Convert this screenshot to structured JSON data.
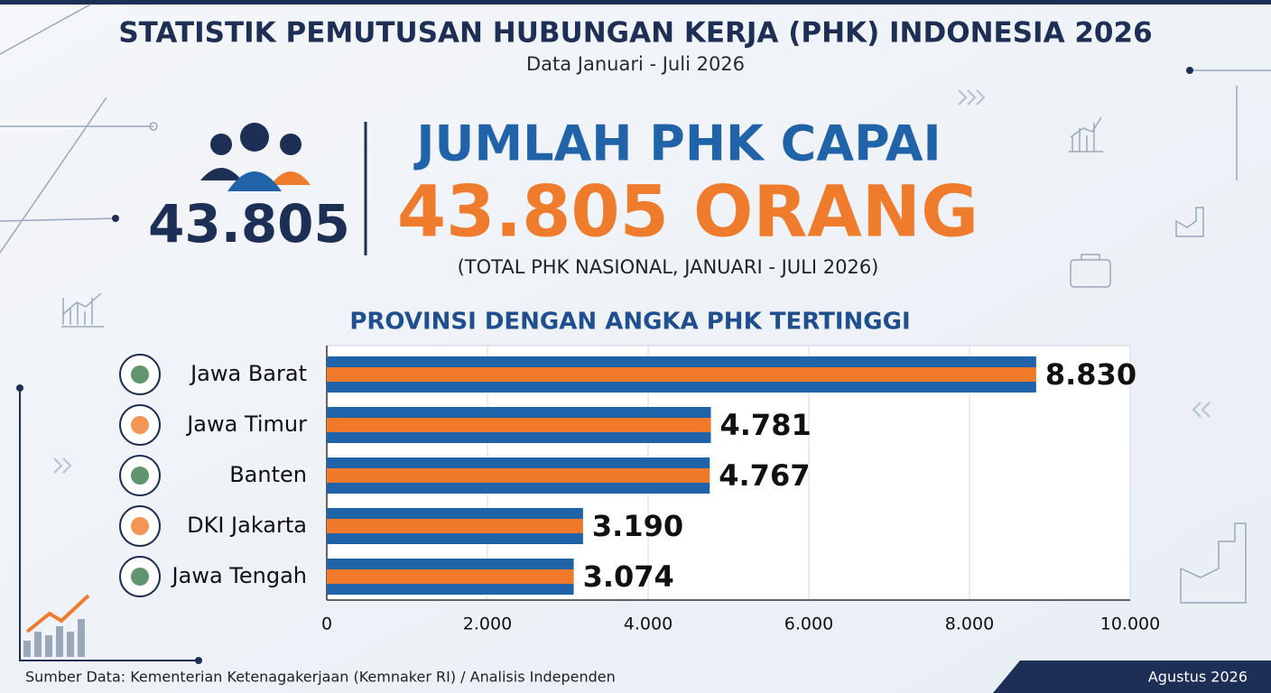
{
  "header": {
    "title": "STATISTIK PEMUTUSAN HUBUNGAN KERJA (PHK) INDONESIA 2026",
    "subtitle": "Data Januari - Juli 2026"
  },
  "headline": {
    "total": "43.805",
    "line1": "JUMLAH PHK CAPAI",
    "line2": "43.805 ORANG",
    "note": "(TOTAL PHK NASIONAL, JANUARI - JULI 2026)"
  },
  "chart_data": {
    "type": "hbar",
    "title": "PROVINSI DENGAN ANGKA PHK TERTINGGI",
    "categories": [
      "Jawa Barat",
      "Jawa Timur",
      "Banten",
      "DKI Jakarta",
      "Jawa Tengah"
    ],
    "values": [
      8830,
      4781,
      4767,
      3190,
      3074
    ],
    "value_labels": [
      "8.830",
      "4.781",
      "4.767",
      "3.190",
      "3.074"
    ],
    "color": "#2163a8",
    "stripe_color": "#f07a2a",
    "xlim": [
      0,
      10000
    ],
    "xticks": [
      0,
      {
        "value": 2000,
        "label": "2.000"
      },
      {
        "value": 4000,
        "label": "4.000"
      },
      {
        "value": 6000,
        "label": "6.000"
      },
      {
        "value": 8000,
        "label": "8.000"
      },
      {
        "value": 10000,
        "label": "10.000"
      }
    ],
    "grid": true
  },
  "footer": {
    "source": "Sumber Data: Kementerian Ketenagakerjaan (Kemnaker RI) / Analisis Independen",
    "date": "Agustus 2026"
  }
}
